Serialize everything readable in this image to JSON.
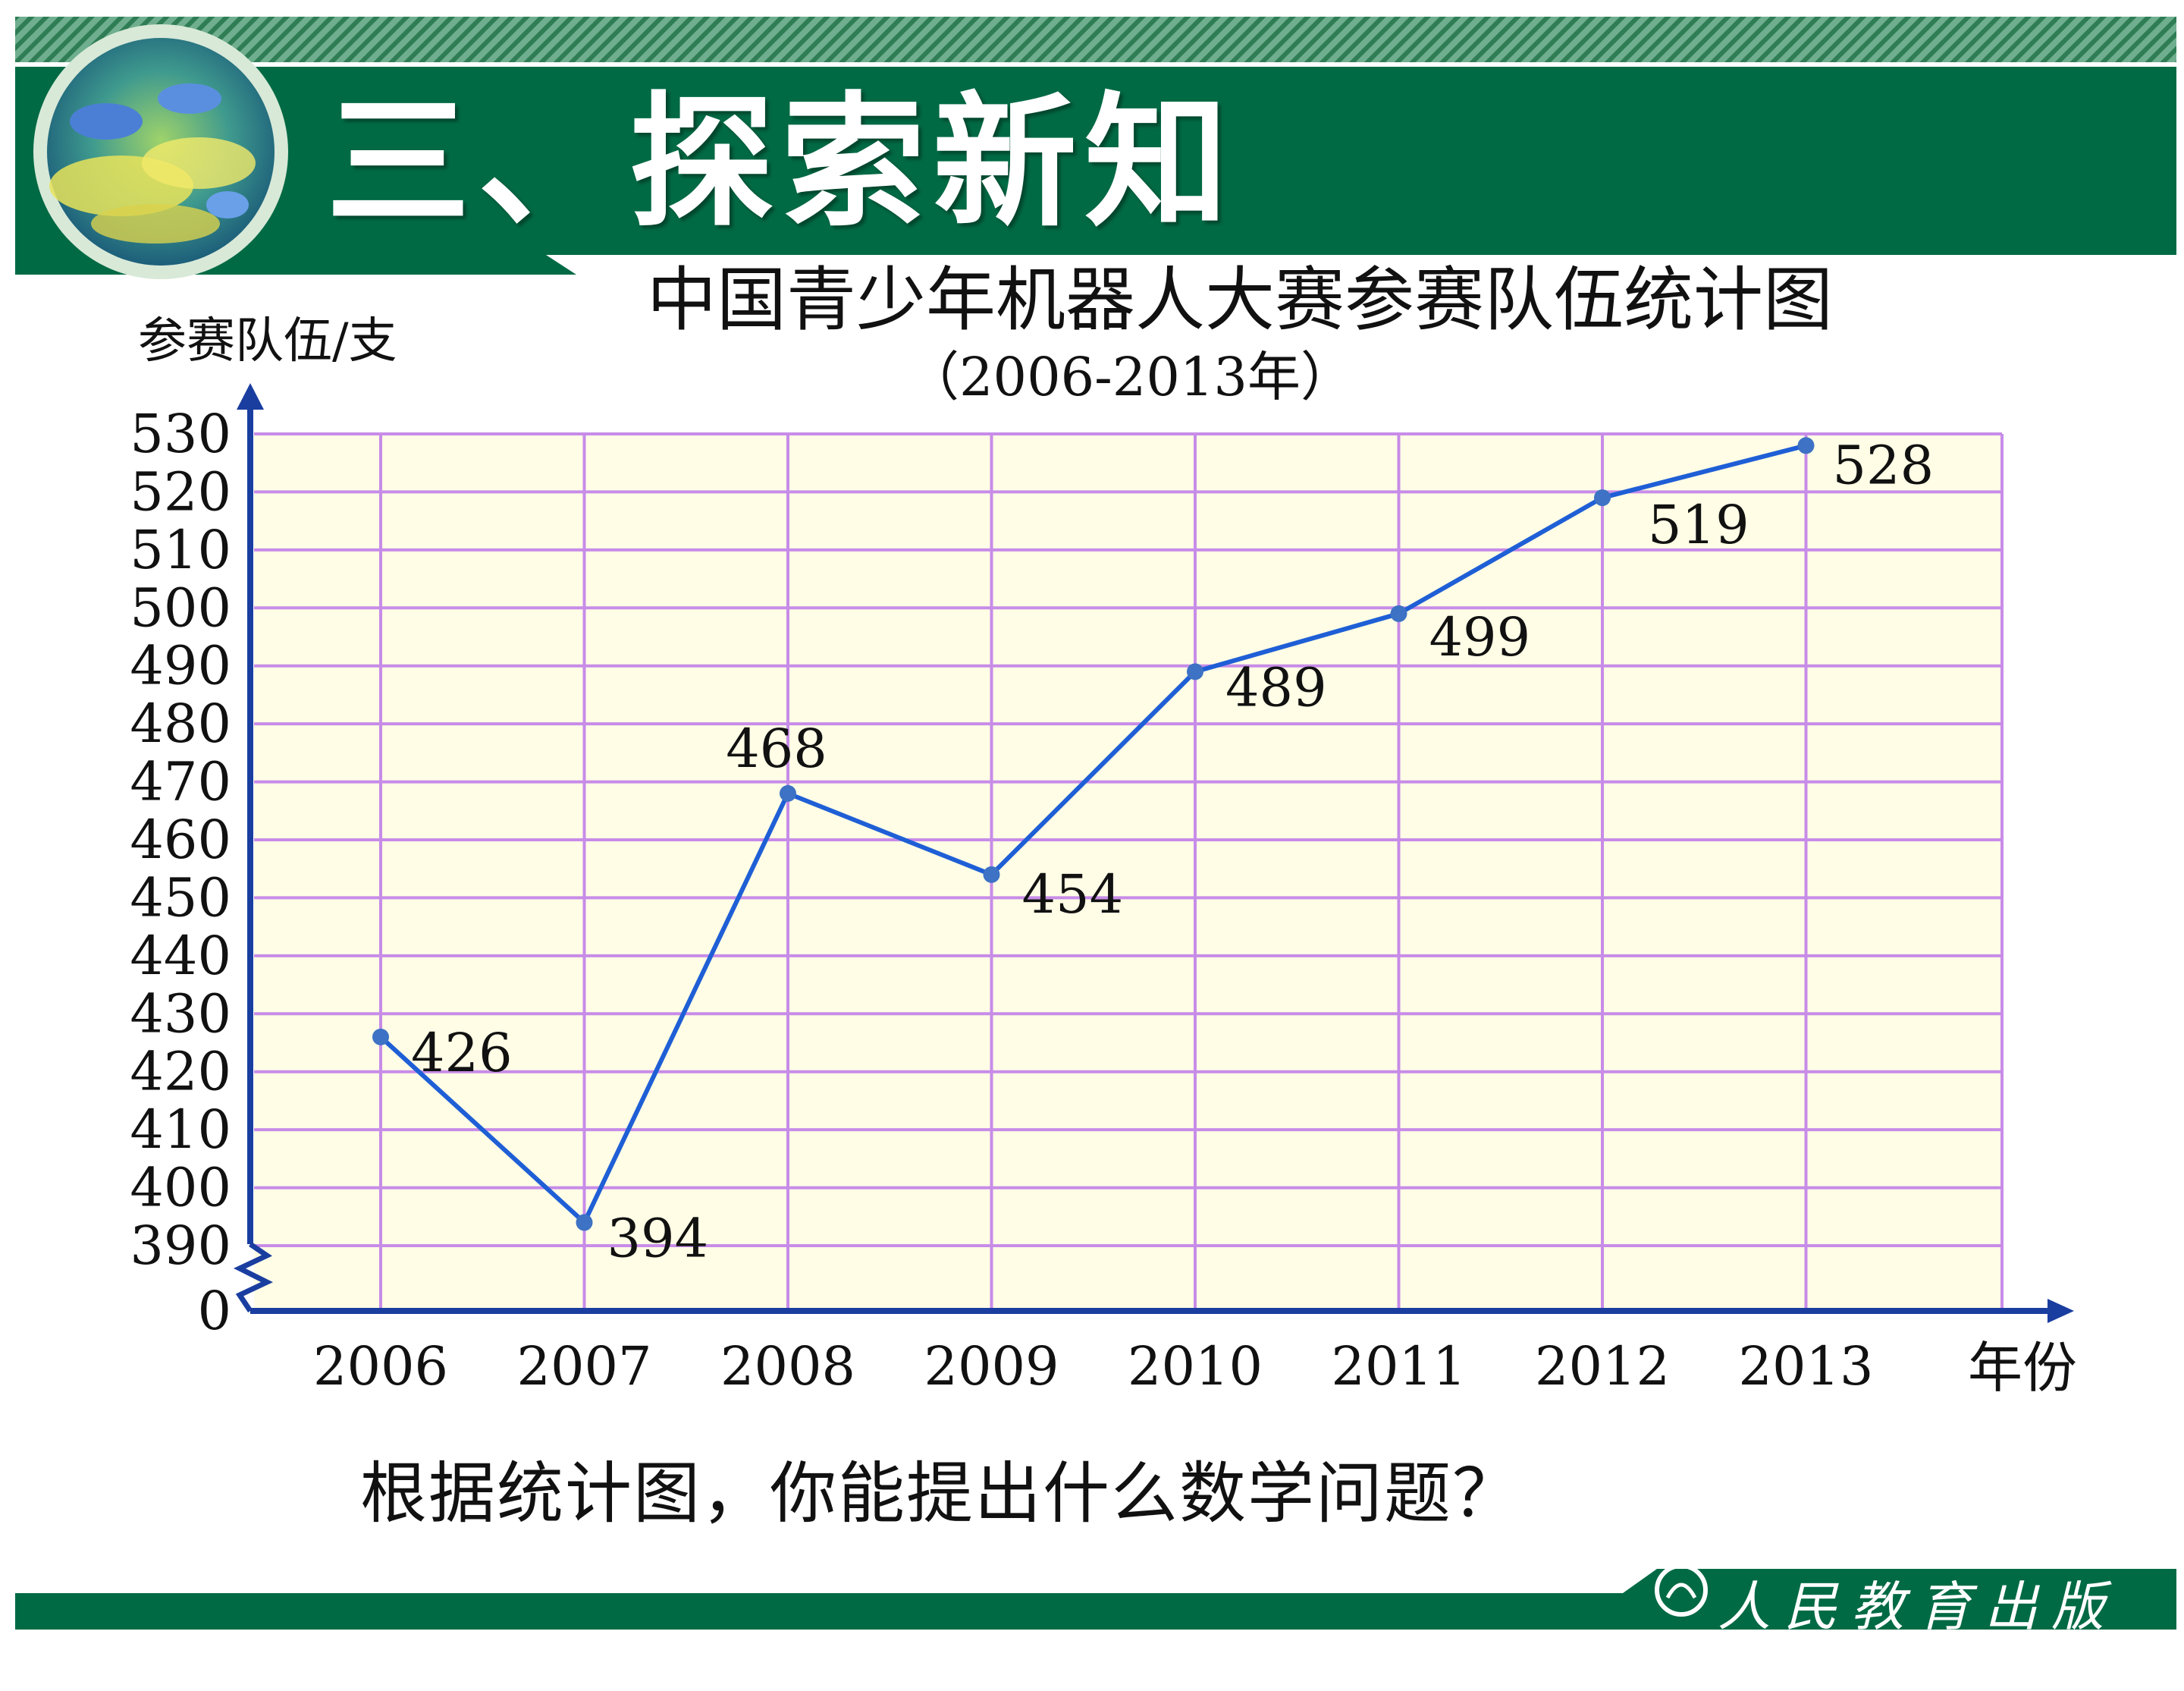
{
  "header": {
    "title": "三、探索新知",
    "bar_color": "#006a44",
    "stripe_color": "#3e8a64"
  },
  "chart_data": {
    "type": "line",
    "title": "中国青少年机器人大赛参赛队伍统计图",
    "subtitle": "（2006-2013年）",
    "ylabel": "参赛队伍/支",
    "xlabel": "年份",
    "categories": [
      "2006",
      "2007",
      "2008",
      "2009",
      "2010",
      "2011",
      "2012",
      "2013"
    ],
    "series": [
      {
        "values": [
          426,
          394,
          468,
          454,
          489,
          499,
          519,
          528
        ],
        "color": "#1f5fd6"
      }
    ],
    "data_labels": [
      "426",
      "394",
      "468",
      "454",
      "489",
      "499",
      "519",
      "528"
    ],
    "y_ticks": [
      "530",
      "520",
      "510",
      "500",
      "490",
      "480",
      "470",
      "460",
      "450",
      "440",
      "430",
      "420",
      "410",
      "400",
      "390",
      "0"
    ],
    "ylim": [
      390,
      530
    ],
    "y_break": true,
    "grid": true,
    "plot_background": "#fffde6",
    "grid_color": "#c78ce8"
  },
  "question": "根据统计图，你能提出什么数学问题？",
  "footer": {
    "publisher": "人民教育出版社",
    "bar_color": "#006a44"
  }
}
